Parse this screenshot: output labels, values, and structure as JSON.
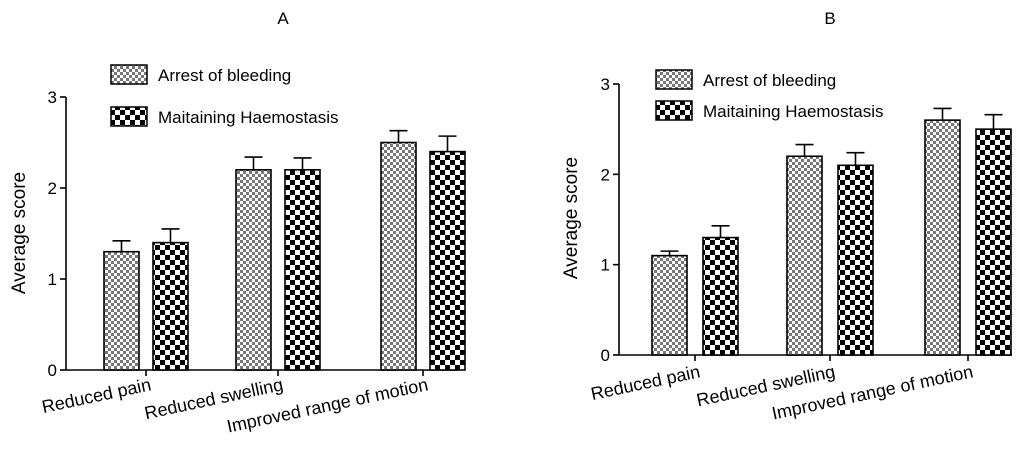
{
  "chart_data": [
    {
      "panel_label": "A",
      "type": "bar",
      "categories": [
        "Reduced pain",
        "Reduced swelling",
        "Improved range of motion"
      ],
      "series": [
        {
          "name": "Arrest of bleeding",
          "values": [
            1.3,
            2.2,
            2.5
          ],
          "errors": [
            0.12,
            0.14,
            0.13
          ],
          "pattern": "fine-check"
        },
        {
          "name": "Maitaining Haemostasis",
          "values": [
            1.4,
            2.2,
            2.4
          ],
          "errors": [
            0.15,
            0.13,
            0.17
          ],
          "pattern": "coarse-check"
        }
      ],
      "ylabel": "Average score",
      "xlabel": "",
      "ylim": [
        0,
        3
      ],
      "yticks": [
        "0",
        "1",
        "2",
        "3"
      ],
      "legend_position": "top-left",
      "grid": false
    },
    {
      "panel_label": "B",
      "type": "bar",
      "categories": [
        "Reduced pain",
        "Reduced swelling",
        "Improved range of motion"
      ],
      "series": [
        {
          "name": "Arrest of bleeding",
          "values": [
            1.1,
            2.2,
            2.6
          ],
          "errors": [
            0.05,
            0.13,
            0.13
          ],
          "pattern": "fine-check"
        },
        {
          "name": "Maitaining Haemostasis",
          "values": [
            1.3,
            2.1,
            2.5
          ],
          "errors": [
            0.13,
            0.14,
            0.16
          ],
          "pattern": "coarse-check"
        }
      ],
      "ylabel": "Average score",
      "xlabel": "",
      "ylim": [
        0,
        3
      ],
      "yticks": [
        "0",
        "1",
        "2",
        "3"
      ],
      "legend_position": "top-left",
      "grid": false
    }
  ]
}
